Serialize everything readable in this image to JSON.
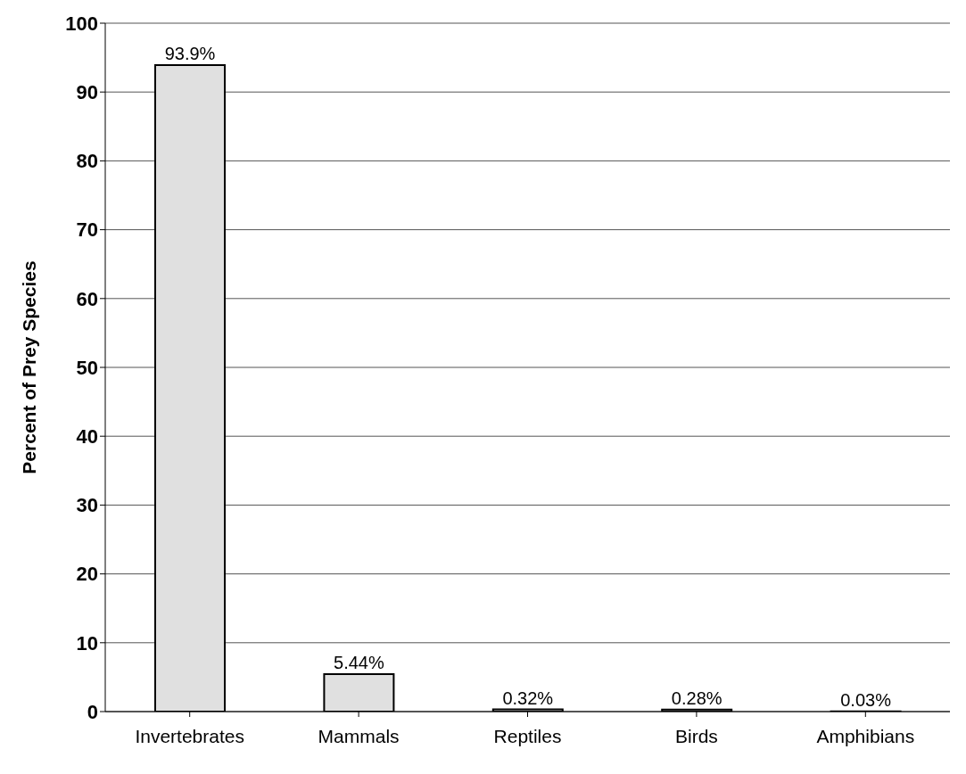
{
  "chart_data": {
    "type": "bar",
    "ylabel": "Percent of Prey Species",
    "categories": [
      "Invertebrates",
      "Mammals",
      "Reptiles",
      "Birds",
      "Amphibians"
    ],
    "values": [
      93.9,
      5.44,
      0.32,
      0.28,
      0.03
    ],
    "value_labels": [
      "93.9%",
      "5.44%",
      "0.32%",
      "0.28%",
      "0.03%"
    ],
    "color": "#e0e0e0",
    "ylim": [
      0,
      100
    ],
    "yticks": [
      0,
      10,
      20,
      30,
      40,
      50,
      60,
      70,
      80,
      90,
      100
    ],
    "grid": "y"
  }
}
